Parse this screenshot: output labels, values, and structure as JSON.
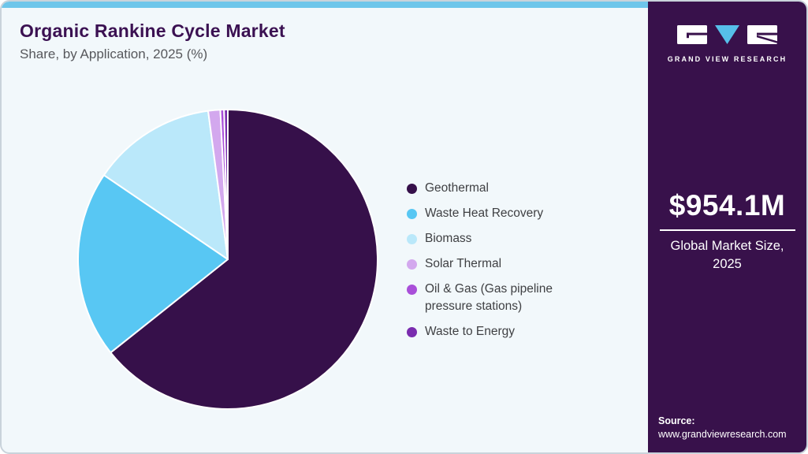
{
  "header": {
    "title": "Organic Rankine Cycle Market",
    "subtitle": "Share, by Application, 2025 (%)"
  },
  "chart_data": {
    "type": "pie",
    "title": "Organic Rankine Cycle Market Share, by Application, 2025 (%)",
    "categories": [
      "Geothermal",
      "Waste Heat Recovery",
      "Biomass",
      "Solar Thermal",
      "Oil & Gas (Gas pipeline pressure stations)",
      "Waste to Energy"
    ],
    "values": [
      64.3,
      20.2,
      13.4,
      1.3,
      0.4,
      0.4
    ],
    "unit": "%",
    "colors": [
      "#36104a",
      "#58c7f3",
      "#bae8fa",
      "#d3a8ee",
      "#a94fd9",
      "#7a2caf"
    ],
    "legend_position": "right",
    "start_angle_deg": 0,
    "direction": "clockwise",
    "slice_border_color": "#ffffff"
  },
  "panel": {
    "logo": {
      "icon": "gvr-logo",
      "wordmark": "GRAND VIEW RESEARCH"
    },
    "market_size_value": "$954.1M",
    "market_size_caption": "Global Market Size, 2025",
    "source_label": "Source:",
    "source_url": "www.grandviewresearch.com"
  },
  "colors": {
    "accent_bar": "#6ec6ea",
    "panel_bg": "#38114b",
    "main_bg": "#f2f8fb",
    "title": "#3b1152",
    "logo_triangle": "#56bfe9"
  }
}
